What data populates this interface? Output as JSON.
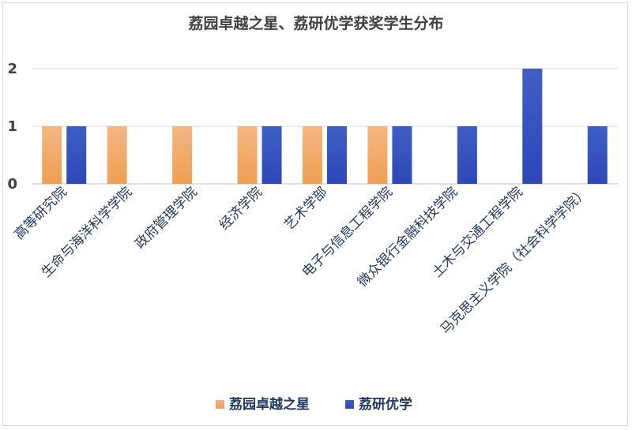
{
  "chart_data": {
    "type": "bar",
    "title": "荔园卓越之星、荔研优学获奖学生分布",
    "categories": [
      "高等研究院",
      "生命与海洋科学学院",
      "政府管理学院",
      "经济学院",
      "艺术学部",
      "电子与信息工程学院",
      "微众银行金融科技学院",
      "土木与交通工程学院",
      "马克思主义学院（社会科学学院）"
    ],
    "series": [
      {
        "name": "荔园卓越之星",
        "values": [
          1,
          1,
          1,
          1,
          1,
          1,
          0,
          0,
          0
        ],
        "color_top": "#f4b684",
        "color_bottom": "#ef9f52"
      },
      {
        "name": "荔研优学",
        "values": [
          1,
          0,
          0,
          1,
          1,
          1,
          1,
          2,
          1
        ],
        "color_top": "#3f5fc4",
        "color_bottom": "#2d47b8"
      }
    ],
    "ylim": [
      0,
      2
    ],
    "yticks": [
      "0",
      "1",
      "2"
    ],
    "xlabel": "",
    "ylabel": "",
    "grid": true,
    "legend_position": "bottom"
  }
}
